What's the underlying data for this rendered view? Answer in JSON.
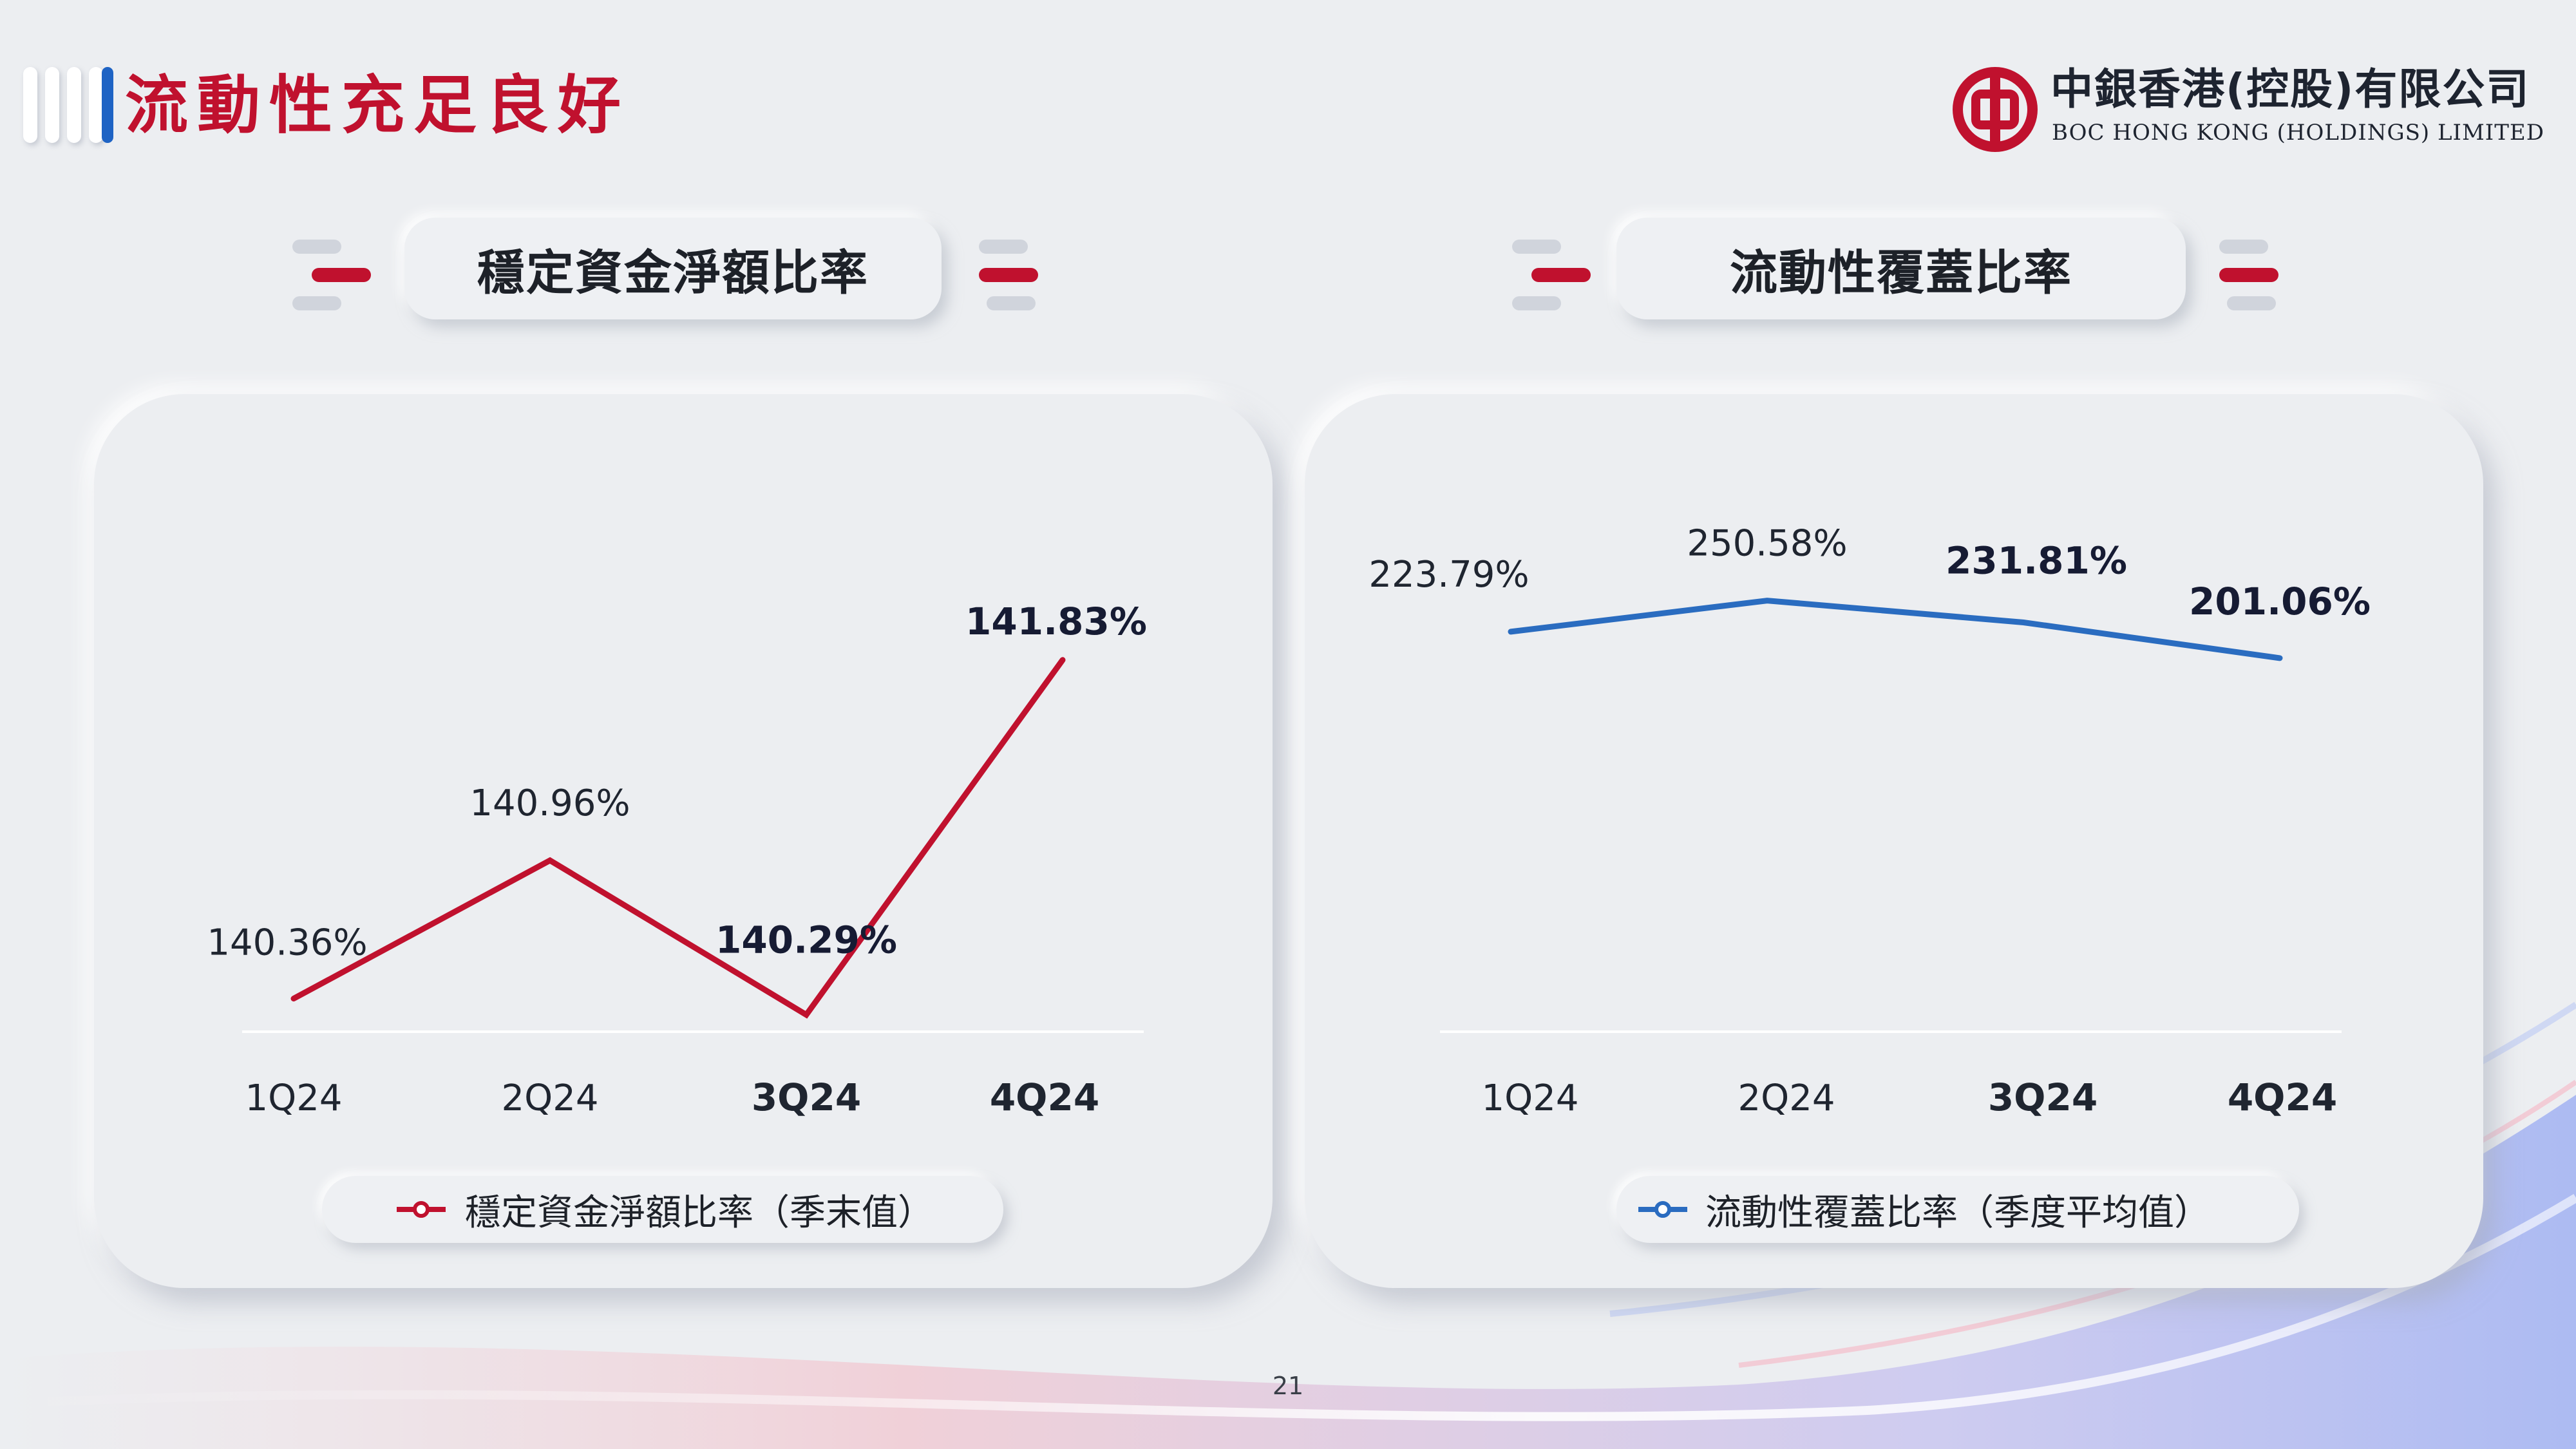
{
  "page_title": "流動性充足良好",
  "company": {
    "name_cn": "中銀香港(控股)有限公司",
    "name_en": "BOC HONG KONG (HOLDINGS) LIMITED",
    "brand_color": "#c0112e"
  },
  "sections": {
    "left_title": "穩定資金淨額比率",
    "right_title": "流動性覆蓋比率"
  },
  "legends": {
    "left": "穩定資金淨額比率（季末值）",
    "right": "流動性覆蓋比率（季度平均值）"
  },
  "page_number": "21",
  "chart_data": [
    {
      "type": "line",
      "categories": [
        "1Q24",
        "2Q24",
        "3Q24",
        "4Q24"
      ],
      "series": [
        {
          "name": "穩定資金淨額比率（季末值）",
          "values": [
            140.36,
            140.96,
            140.29,
            141.83
          ],
          "color": "#c0112e"
        }
      ],
      "value_labels": [
        "140.36%",
        "140.96%",
        "140.29%",
        "141.83%"
      ],
      "bold_points": [
        false,
        false,
        true,
        true
      ],
      "ylim": [
        139.4,
        142.0
      ],
      "legend_position": "bottom",
      "grid": false
    },
    {
      "type": "line",
      "categories": [
        "1Q24",
        "2Q24",
        "3Q24",
        "4Q24"
      ],
      "series": [
        {
          "name": "流動性覆蓋比率（季度平均值）",
          "values": [
            223.79,
            250.58,
            231.81,
            201.06
          ],
          "color": "#2a6cc0"
        }
      ],
      "value_labels": [
        "223.79%",
        "250.58%",
        "231.81%",
        "201.06%"
      ],
      "bold_points": [
        false,
        false,
        true,
        true
      ],
      "ylim": [
        -360,
        262
      ],
      "legend_position": "bottom",
      "grid": false
    }
  ]
}
